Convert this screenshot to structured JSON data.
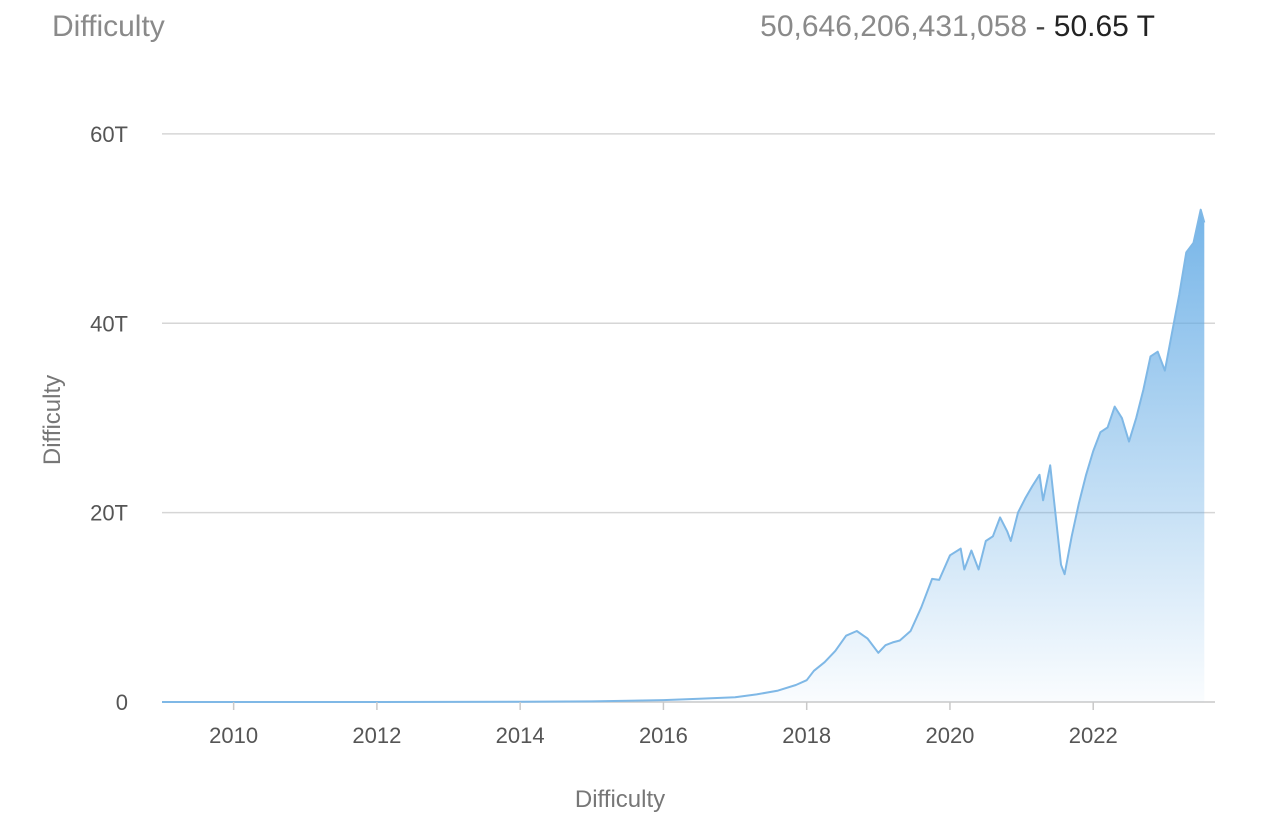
{
  "header": {
    "title": "Difficulty",
    "full_value": "50,646,206,431,058",
    "separator": "-",
    "short_value": "50.65 T"
  },
  "chart_data": {
    "type": "area",
    "title": "Difficulty",
    "xlabel": "Difficulty",
    "ylabel": "Difficulty",
    "x_range": [
      2009.0,
      2023.7
    ],
    "ylim": [
      0,
      62
    ],
    "y_unit": "T",
    "yticks": [
      {
        "value": 0,
        "label": "0"
      },
      {
        "value": 20,
        "label": "20T"
      },
      {
        "value": 40,
        "label": "40T"
      },
      {
        "value": 60,
        "label": "60T"
      }
    ],
    "xticks": [
      {
        "value": 2010,
        "label": "2010"
      },
      {
        "value": 2012,
        "label": "2012"
      },
      {
        "value": 2014,
        "label": "2014"
      },
      {
        "value": 2016,
        "label": "2016"
      },
      {
        "value": 2018,
        "label": "2018"
      },
      {
        "value": 2020,
        "label": "2020"
      },
      {
        "value": 2022,
        "label": "2022"
      }
    ],
    "grid": true,
    "line_color": "#7fb8e6",
    "fill_color": "#5ea8e4",
    "series": [
      {
        "x": [
          2009.0,
          2010.0,
          2011.0,
          2012.0,
          2013.0,
          2014.0,
          2015.0,
          2016.0,
          2016.5,
          2017.0,
          2017.3,
          2017.6,
          2017.85,
          2018.0,
          2018.1,
          2018.25,
          2018.4,
          2018.55,
          2018.7,
          2018.85,
          2019.0,
          2019.1,
          2019.2,
          2019.3,
          2019.45,
          2019.6,
          2019.75,
          2019.85,
          2020.0,
          2020.15,
          2020.2,
          2020.3,
          2020.4,
          2020.5,
          2020.6,
          2020.7,
          2020.8,
          2020.85,
          2020.95,
          2021.05,
          2021.15,
          2021.25,
          2021.3,
          2021.4,
          2021.5,
          2021.55,
          2021.6,
          2021.7,
          2021.8,
          2021.9,
          2022.0,
          2022.1,
          2022.2,
          2022.3,
          2022.4,
          2022.5,
          2022.6,
          2022.7,
          2022.8,
          2022.9,
          2023.0,
          2023.1,
          2023.2,
          2023.3,
          2023.4,
          2023.5,
          2023.55
        ],
        "y": [
          0,
          0,
          0,
          0,
          0.01,
          0.03,
          0.06,
          0.2,
          0.35,
          0.5,
          0.8,
          1.2,
          1.8,
          2.3,
          3.3,
          4.2,
          5.4,
          7.0,
          7.5,
          6.7,
          5.2,
          6.0,
          6.3,
          6.5,
          7.5,
          10.0,
          13.0,
          12.9,
          15.5,
          16.2,
          14.0,
          16.0,
          14.0,
          17.0,
          17.5,
          19.5,
          18.0,
          17.0,
          20.0,
          21.5,
          22.8,
          24.0,
          21.3,
          25.0,
          18.0,
          14.5,
          13.5,
          17.5,
          21.0,
          24.0,
          26.5,
          28.5,
          29.0,
          31.2,
          30.0,
          27.5,
          30.0,
          33.0,
          36.5,
          37.0,
          35.0,
          39.0,
          43.0,
          47.5,
          48.5,
          52.0,
          50.65
        ]
      }
    ]
  }
}
